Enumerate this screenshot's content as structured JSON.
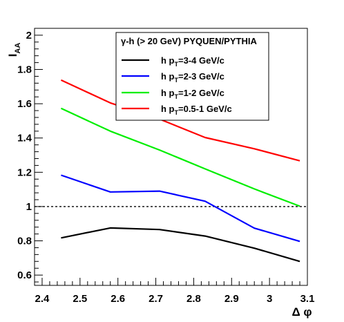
{
  "chart_data": {
    "type": "line",
    "title": "",
    "xlabel": "Δ φ",
    "ylabel_main": "I",
    "ylabel_sub": "AA",
    "xlim": [
      2.38,
      3.1
    ],
    "ylim": [
      0.54,
      2.04
    ],
    "x_ticks": [
      2.4,
      2.5,
      2.6,
      2.7,
      2.8,
      2.9,
      3.0,
      3.1
    ],
    "x_tick_labels": [
      "2.4",
      "2.5",
      "2.6",
      "2.7",
      "2.8",
      "2.9",
      "3",
      "3.1"
    ],
    "y_ticks": [
      0.6,
      0.8,
      1.0,
      1.2,
      1.4,
      1.6,
      1.8,
      2.0
    ],
    "y_tick_labels": [
      "0.6",
      "0.8",
      "1",
      "1.2",
      "1.4",
      "1.6",
      "1.8",
      "2"
    ],
    "reference_line": {
      "y": 1.0,
      "style": "dashed",
      "color": "#000000"
    },
    "legend": {
      "header_prefix": "γ-h (> 20 GeV) PYQUEN/PYTHIA",
      "placement": "top-right"
    },
    "series": [
      {
        "name": "h p",
        "sub": "T",
        "rest": "=3-4 GeV/c",
        "color": "#000000",
        "x": [
          2.45,
          2.58,
          2.71,
          2.83,
          2.96,
          3.08
        ],
        "values": [
          0.817,
          0.875,
          0.866,
          0.828,
          0.757,
          0.68
        ]
      },
      {
        "name": "h p",
        "sub": "T",
        "rest": "=2-3 GeV/c",
        "color": "#0000ff",
        "x": [
          2.45,
          2.58,
          2.71,
          2.83,
          2.96,
          3.08
        ],
        "values": [
          1.183,
          1.085,
          1.09,
          1.031,
          0.874,
          0.797
        ]
      },
      {
        "name": "h p",
        "sub": "T",
        "rest": "=1-2 GeV/c",
        "color": "#00ee00",
        "x": [
          2.45,
          2.58,
          2.71,
          2.83,
          2.96,
          3.08
        ],
        "values": [
          1.573,
          1.44,
          1.33,
          1.22,
          1.103,
          1.002
        ]
      },
      {
        "name": "h p",
        "sub": "T",
        "rest": "=0.5-1 GeV/c",
        "color": "#ff0000",
        "x": [
          2.45,
          2.58,
          2.71,
          2.83,
          2.96,
          3.08
        ],
        "values": [
          1.738,
          1.605,
          1.51,
          1.403,
          1.337,
          1.267
        ]
      }
    ]
  }
}
